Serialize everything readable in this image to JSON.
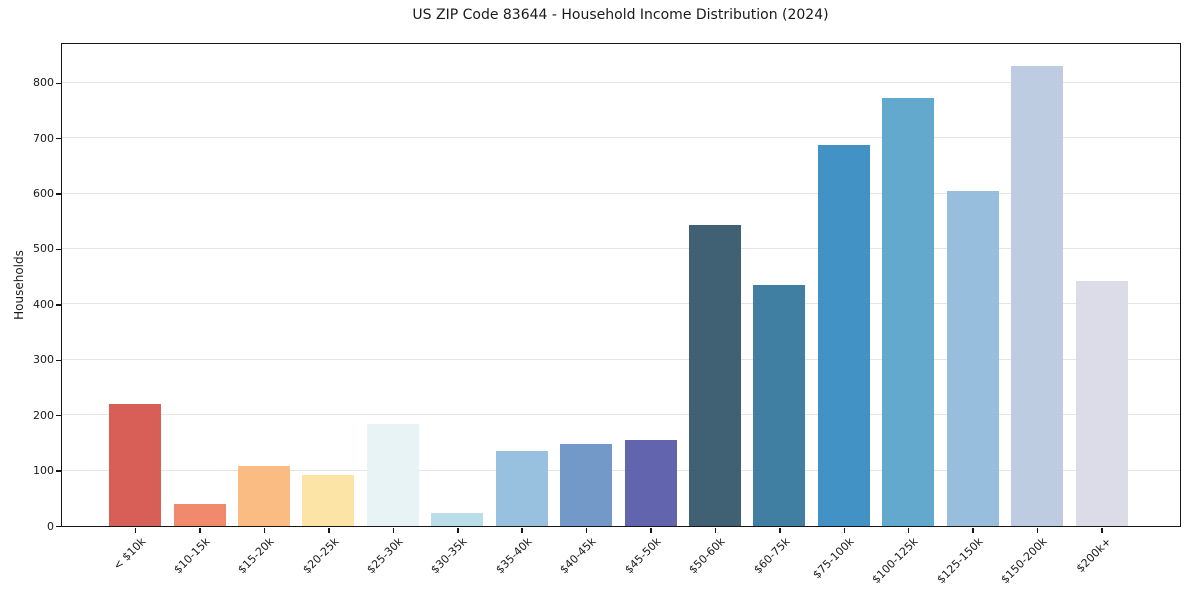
{
  "chart_data": {
    "type": "bar",
    "title": "US ZIP Code 83644 - Household Income Distribution (2024)",
    "xlabel": "",
    "ylabel": "Households",
    "categories": [
      "< $10k",
      "$10-15k",
      "$15-20k",
      "$20-25k",
      "$25-30k",
      "$30-35k",
      "$35-40k",
      "$40-45k",
      "$45-50k",
      "$50-60k",
      "$60-75k",
      "$75-100k",
      "$100-125k",
      "$125-150k",
      "$150-200k",
      "$200k+"
    ],
    "values": [
      220,
      40,
      108,
      92,
      185,
      23,
      136,
      148,
      155,
      543,
      435,
      688,
      773,
      605,
      830,
      442
    ],
    "bar_colors": [
      "#d5564e",
      "#f08365",
      "#fab87b",
      "#fce3a1",
      "#e7f2f4",
      "#b6dbe9",
      "#92bedd",
      "#6b93c5",
      "#5a5caa",
      "#36596d",
      "#36789c",
      "#398cc3",
      "#5ba4cb",
      "#92badb",
      "#bac9e0",
      "#dadae8"
    ],
    "yticks": [
      0,
      100,
      200,
      300,
      400,
      500,
      600,
      700,
      800
    ],
    "ylim": [
      0,
      870
    ],
    "grid": "horizontal",
    "legend": "none",
    "x_tick_rotation": 45,
    "background_color": "#ffffff",
    "gridline_color": "#e5e5e7",
    "axis_color": "#161616",
    "text_color": "#1a1a1a"
  }
}
